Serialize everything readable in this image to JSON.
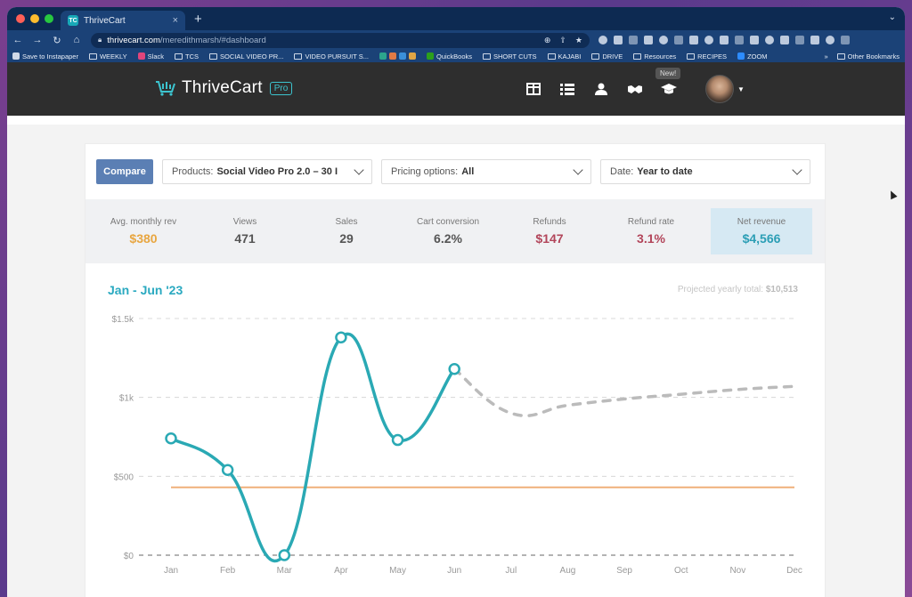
{
  "browser": {
    "tab_title": "ThriveCart",
    "tab_favicon": "TC",
    "url_host": "thrivecart.com",
    "url_path": "/meredithmarsh/#dashboard",
    "bookmarks": [
      "Save to Instapaper",
      "WEEKLY",
      "Slack",
      "TCS",
      "SOCIAL VIDEO PR...",
      "VIDEO PURSUIT S...",
      "QuickBooks",
      "SHORT CUTS",
      "KAJABI",
      "DRIVE",
      "Resources",
      "RECIPES",
      "ZOOM"
    ],
    "other_bookmarks": "Other Bookmarks"
  },
  "app": {
    "logo_text": "ThriveCart",
    "logo_badge": "Pro",
    "new_badge": "New!",
    "nav_icons": [
      "dashboard-icon",
      "list-icon",
      "user-icon",
      "handshake-icon",
      "graduation-cap-icon"
    ]
  },
  "filters": {
    "compare_label": "Compare",
    "products_label": "Products:",
    "products_value": "Social Video Pro 2.0 – 30 I",
    "pricing_label": "Pricing options:",
    "pricing_value": "All",
    "date_label": "Date:",
    "date_value": "Year to date"
  },
  "stats": [
    {
      "label": "Avg. monthly rev",
      "value": "$380",
      "color": "#e8a640"
    },
    {
      "label": "Views",
      "value": "471"
    },
    {
      "label": "Sales",
      "value": "29"
    },
    {
      "label": "Cart conversion",
      "value": "6.2%"
    },
    {
      "label": "Refunds",
      "value": "$147",
      "color": "#b2455a"
    },
    {
      "label": "Refund rate",
      "value": "3.1%",
      "color": "#b2455a"
    },
    {
      "label": "Net revenue",
      "value": "$4,566",
      "color": "#2b9eb5"
    }
  ],
  "chart": {
    "period_title": "Jan - Jun '23",
    "projected_label": "Projected yearly total:",
    "projected_value": "$10,513"
  },
  "chart_data": {
    "type": "line",
    "categories": [
      "Jan",
      "Feb",
      "Mar",
      "Apr",
      "May",
      "Jun",
      "Jul",
      "Aug",
      "Sep",
      "Oct",
      "Nov",
      "Dec"
    ],
    "series": [
      {
        "values": [
          740,
          540,
          0,
          1380,
          730,
          1180,
          null,
          null,
          null,
          null,
          null,
          null
        ],
        "color": "#2aa9b4"
      },
      {
        "values": [
          null,
          null,
          null,
          null,
          null,
          1180,
          900,
          950,
          990,
          1020,
          1050,
          1070
        ],
        "color": "#bbbbbb",
        "style": "dashed"
      },
      {
        "values": [
          430,
          430,
          430,
          430,
          430,
          430,
          430,
          430,
          430,
          430,
          430,
          430
        ],
        "color": "#f0b07a"
      }
    ],
    "yticks": [
      "$0",
      "$500",
      "$1k",
      "$1.5k"
    ],
    "ylim": [
      0,
      1500
    ],
    "grid": true
  }
}
